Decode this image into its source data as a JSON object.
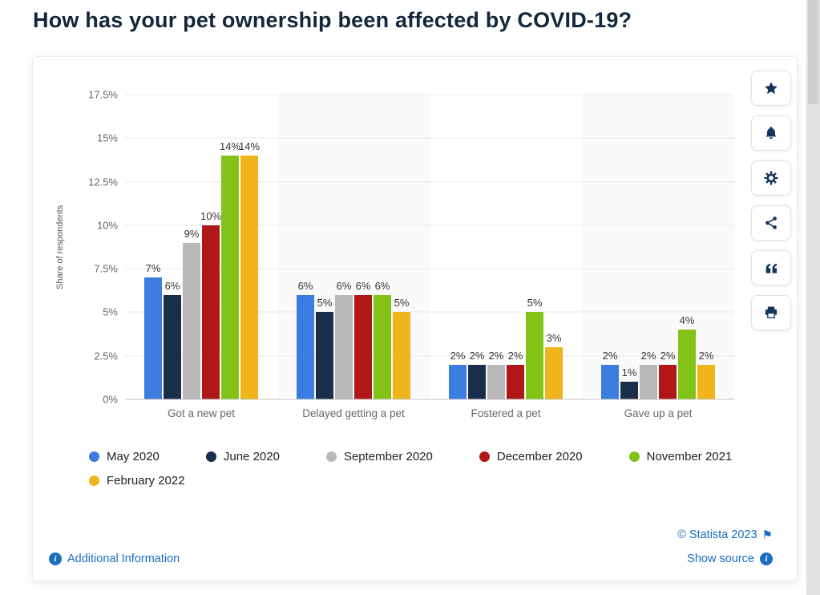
{
  "page": {
    "title": "How has your pet ownership been affected by COVID-19?"
  },
  "chart_data": {
    "type": "bar",
    "title": "How has your pet ownership been affected by COVID-19?",
    "ylabel": "Share of respondents",
    "xlabel": "",
    "categories": [
      "Got a new pet",
      "Delayed getting a pet",
      "Fostered a pet",
      "Gave up a pet"
    ],
    "series": [
      {
        "name": "May 2020",
        "color": "#3b7dde",
        "values": [
          7,
          6,
          2,
          2
        ]
      },
      {
        "name": "June 2020",
        "color": "#1a2e4c",
        "values": [
          6,
          5,
          2,
          1
        ]
      },
      {
        "name": "September 2020",
        "color": "#b8b8b8",
        "values": [
          9,
          6,
          2,
          2
        ]
      },
      {
        "name": "December 2020",
        "color": "#b01717",
        "values": [
          10,
          6,
          2,
          2
        ]
      },
      {
        "name": "November 2021",
        "color": "#83c318",
        "values": [
          14,
          6,
          5,
          4
        ]
      },
      {
        "name": "February 2022",
        "color": "#f0b51c",
        "values": [
          14,
          5,
          3,
          2
        ]
      }
    ],
    "value_suffix": "%",
    "y_ticks": [
      "0%",
      "2.5%",
      "5%",
      "7.5%",
      "10%",
      "12.5%",
      "15%",
      "17.5%"
    ],
    "ylim": [
      0,
      17.5
    ],
    "grid": true,
    "legend_position": "bottom"
  },
  "toolbar": {
    "buttons": [
      {
        "name": "favorite-button",
        "icon": "star-icon"
      },
      {
        "name": "alerts-button",
        "icon": "bell-icon"
      },
      {
        "name": "settings-button",
        "icon": "gear-icon"
      },
      {
        "name": "share-button",
        "icon": "share-icon"
      },
      {
        "name": "cite-button",
        "icon": "quote-icon"
      },
      {
        "name": "print-button",
        "icon": "printer-icon"
      }
    ]
  },
  "footer": {
    "copyright": "© Statista 2023",
    "additional_info": "Additional Information",
    "show_source": "Show source"
  },
  "icons": {
    "info_glyph": "i",
    "flag_glyph": "⚑"
  },
  "colors": {
    "link_blue": "#1a6dbf",
    "icon_navy": "#14365c",
    "title": "#12263c"
  }
}
